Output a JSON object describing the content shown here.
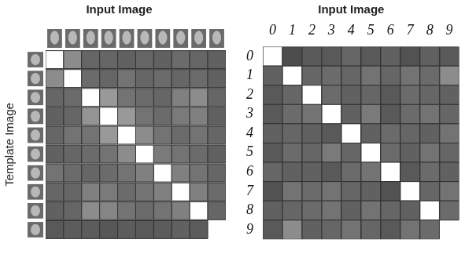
{
  "chart_data": [
    {
      "type": "heatmap",
      "title": "Input Image",
      "ylabel": "Template Image",
      "tick_labels": false,
      "cells": [
        [
          1,
          0.55,
          0.4,
          0.4,
          0.38,
          0.4,
          0.38,
          0.42,
          0.4,
          0.38
        ],
        [
          0.55,
          1,
          0.42,
          0.4,
          0.45,
          0.4,
          0.42,
          0.4,
          0.42,
          0.38
        ],
        [
          0.4,
          0.42,
          1,
          0.6,
          0.45,
          0.42,
          0.4,
          0.5,
          0.55,
          0.4
        ],
        [
          0.38,
          0.4,
          0.58,
          1,
          0.6,
          0.45,
          0.42,
          0.48,
          0.5,
          0.38
        ],
        [
          0.4,
          0.45,
          0.45,
          0.6,
          1,
          0.55,
          0.45,
          0.42,
          0.45,
          0.4
        ],
        [
          0.38,
          0.4,
          0.42,
          0.45,
          0.55,
          1,
          0.48,
          0.45,
          0.42,
          0.38
        ],
        [
          0.45,
          0.42,
          0.4,
          0.42,
          0.45,
          0.5,
          1,
          0.5,
          0.45,
          0.4
        ],
        [
          0.4,
          0.4,
          0.5,
          0.48,
          0.42,
          0.45,
          0.5,
          1,
          0.5,
          0.42
        ],
        [
          0.38,
          0.4,
          0.55,
          0.52,
          0.45,
          0.42,
          0.45,
          0.5,
          1,
          0.4
        ],
        [
          0.35,
          0.36,
          0.36,
          0.34,
          0.36,
          0.35,
          0.36,
          0.38,
          0.36,
          null
        ]
      ]
    },
    {
      "type": "heatmap",
      "title": "Input Image",
      "x": [
        "0",
        "1",
        "2",
        "3",
        "4",
        "5",
        "6",
        "7",
        "8",
        "9"
      ],
      "y": [
        "0",
        "1",
        "2",
        "3",
        "4",
        "5",
        "6",
        "7",
        "8",
        "9"
      ],
      "cells": [
        [
          1,
          0.3,
          0.35,
          0.35,
          0.4,
          0.35,
          0.38,
          0.32,
          0.38,
          0.35
        ],
        [
          0.38,
          1,
          0.4,
          0.42,
          0.4,
          0.45,
          0.4,
          0.45,
          0.42,
          0.55
        ],
        [
          0.35,
          0.4,
          1,
          0.42,
          0.38,
          0.4,
          0.35,
          0.42,
          0.4,
          0.38
        ],
        [
          0.35,
          0.42,
          0.45,
          1,
          0.38,
          0.48,
          0.35,
          0.42,
          0.45,
          0.4
        ],
        [
          0.38,
          0.4,
          0.38,
          0.35,
          1,
          0.38,
          0.42,
          0.4,
          0.38,
          0.45
        ],
        [
          0.35,
          0.42,
          0.4,
          0.48,
          0.4,
          1,
          0.42,
          0.38,
          0.45,
          0.4
        ],
        [
          0.4,
          0.38,
          0.38,
          0.35,
          0.42,
          0.45,
          1,
          0.35,
          0.42,
          0.38
        ],
        [
          0.32,
          0.45,
          0.42,
          0.45,
          0.4,
          0.38,
          0.32,
          1,
          0.4,
          0.45
        ],
        [
          0.38,
          0.4,
          0.42,
          0.45,
          0.38,
          0.45,
          0.4,
          0.38,
          1,
          0.42
        ],
        [
          0.35,
          0.55,
          0.38,
          0.4,
          0.45,
          0.4,
          0.35,
          0.45,
          0.42,
          null
        ]
      ]
    }
  ]
}
